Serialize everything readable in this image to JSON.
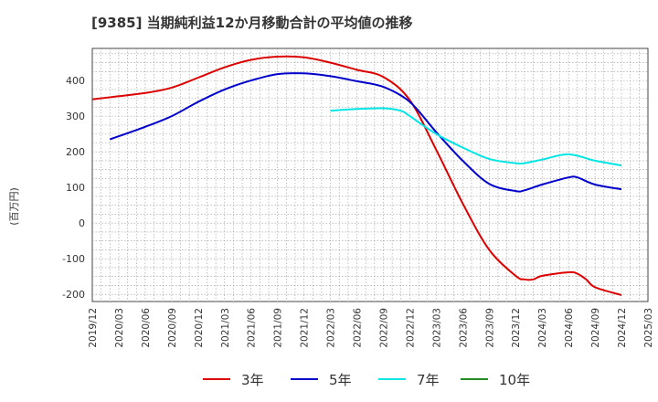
{
  "chart_data": {
    "type": "line",
    "title": "[9385]  当期純利益12か月移動合計の平均値の推移",
    "ylabel": "(百万円)",
    "ylim": [
      -220,
      490
    ],
    "yticks": [
      400,
      300,
      200,
      100,
      0,
      -100,
      -200
    ],
    "ytick_labels": [
      "400",
      "300",
      "200",
      "100",
      "0",
      "-100",
      "-200"
    ],
    "x_ticks": [
      "2019/12",
      "2020/03",
      "2020/06",
      "2020/09",
      "2020/12",
      "2021/03",
      "2021/06",
      "2021/09",
      "2021/12",
      "2022/03",
      "2022/06",
      "2022/09",
      "2022/12",
      "2023/03",
      "2023/06",
      "2023/09",
      "2023/12",
      "2024/03",
      "2024/06",
      "2024/09",
      "2024/12",
      "2025/03"
    ],
    "grid": true,
    "legend_position": "bottom",
    "series": [
      {
        "name": "3年",
        "color": "#dd0000",
        "x": [
          "2019/12",
          "2020/03",
          "2020/06",
          "2020/09",
          "2020/12",
          "2021/03",
          "2021/06",
          "2021/09",
          "2021/12",
          "2022/03",
          "2022/06",
          "2022/09",
          "2022/12",
          "2023/03",
          "2023/06",
          "2023/09",
          "2023/12",
          "2024/01",
          "2024/02",
          "2024/03",
          "2024/06",
          "2024/07",
          "2024/08",
          "2024/09",
          "2024/12"
        ],
        "values": [
          347,
          356,
          365,
          380,
          408,
          437,
          458,
          467,
          465,
          450,
          430,
          410,
          345,
          205,
          55,
          -75,
          -148,
          -158,
          -158,
          -148,
          -138,
          -142,
          -158,
          -180,
          -202
        ]
      },
      {
        "name": "5年",
        "color": "#0000cc",
        "x": [
          "2020/02",
          "2020/06",
          "2020/09",
          "2020/12",
          "2021/03",
          "2021/06",
          "2021/09",
          "2021/12",
          "2022/03",
          "2022/06",
          "2022/09",
          "2022/12",
          "2023/03",
          "2023/06",
          "2023/09",
          "2023/12",
          "2024/01",
          "2024/03",
          "2024/06",
          "2024/07",
          "2024/09",
          "2024/12"
        ],
        "values": [
          235,
          270,
          300,
          340,
          375,
          400,
          418,
          420,
          412,
          398,
          382,
          340,
          255,
          175,
          110,
          90,
          92,
          108,
          128,
          128,
          108,
          95
        ]
      },
      {
        "name": "7年",
        "color": "#00e5e5",
        "x": [
          "2022/03",
          "2022/06",
          "2022/09",
          "2022/11",
          "2022/12",
          "2023/03",
          "2023/06",
          "2023/09",
          "2023/12",
          "2024/01",
          "2024/03",
          "2024/06",
          "2024/09",
          "2024/12"
        ],
        "values": [
          315,
          320,
          322,
          315,
          300,
          250,
          212,
          180,
          168,
          168,
          178,
          193,
          175,
          162
        ]
      },
      {
        "name": "10年",
        "color": "#228b22",
        "x": [],
        "values": []
      }
    ]
  }
}
